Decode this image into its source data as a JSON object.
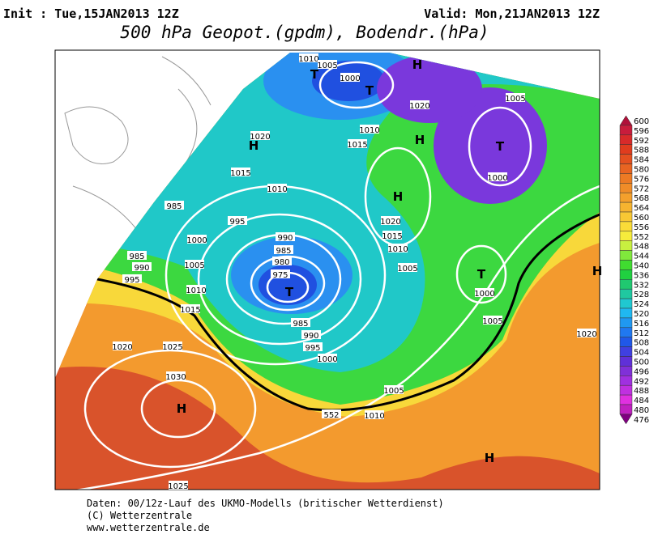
{
  "header": {
    "init": "Init : Tue,15JAN2013 12Z",
    "valid": "Valid: Mon,21JAN2013 12Z",
    "title": "500 hPa Geopot.(gpdm), Bodendr.(hPa)"
  },
  "map_labels": [
    "1010",
    "1005",
    "1000",
    "T",
    "H",
    "1020",
    "T",
    "1010",
    "1015",
    "1020",
    "H",
    "1015",
    "1010",
    "H",
    "1005",
    "T",
    "1000",
    "H",
    "985",
    "995",
    "990",
    "985",
    "980",
    "975",
    "T",
    "1000",
    "985",
    "990",
    "995",
    "1005",
    "1010",
    "1015",
    "1020",
    "1015",
    "1010",
    "1005",
    "T",
    "1000",
    "1005",
    "1020",
    "H",
    "985",
    "990",
    "995",
    "1000",
    "1020",
    "1025",
    "1030",
    "H",
    "1005",
    "1010",
    "552",
    "H",
    "1025"
  ],
  "legend": [
    "600",
    "596",
    "592",
    "588",
    "584",
    "580",
    "576",
    "572",
    "568",
    "564",
    "560",
    "556",
    "552",
    "548",
    "544",
    "540",
    "536",
    "532",
    "528",
    "524",
    "520",
    "516",
    "512",
    "508",
    "504",
    "500",
    "496",
    "492",
    "488",
    "484",
    "480",
    "476"
  ],
  "footer": [
    "Daten: 00/12z-Lauf des UKMO-Modells (britischer Wetterdienst)",
    "(C) Wetterzentrale",
    "www.wetterzentrale.de"
  ]
}
